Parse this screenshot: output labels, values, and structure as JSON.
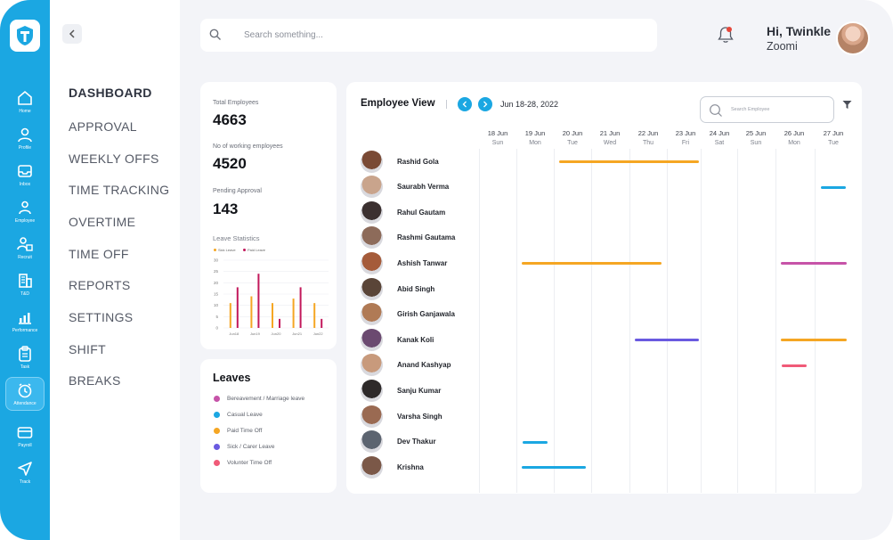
{
  "rail": {
    "items": [
      {
        "label": "Home",
        "icon": "home-icon"
      },
      {
        "label": "Profile",
        "icon": "user-icon"
      },
      {
        "label": "Inbox",
        "icon": "inbox-icon"
      },
      {
        "label": "Employee",
        "icon": "employees-icon"
      },
      {
        "label": "Recruit",
        "icon": "recruit-icon"
      },
      {
        "label": "T&D",
        "icon": "building-icon"
      },
      {
        "label": "Performance",
        "icon": "chart-icon"
      },
      {
        "label": "Task",
        "icon": "clipboard-icon"
      },
      {
        "label": "Attendance",
        "icon": "clock-icon"
      },
      {
        "label": "Payroll",
        "icon": "card-icon"
      },
      {
        "label": "Track",
        "icon": "send-icon"
      }
    ],
    "active": "Attendance"
  },
  "nav": {
    "items": [
      "DASHBOARD",
      "APPROVAL",
      "WEEKLY OFFS",
      "TIME TRACKING",
      "OVERTIME",
      "TIME OFF",
      "REPORTS",
      "SETTINGS",
      "SHIFT",
      "BREAKS"
    ],
    "active": "DASHBOARD"
  },
  "header": {
    "search_placeholder": "Search something...",
    "greeting": "Hi, Twinkle",
    "company": "Zoomi"
  },
  "stats": {
    "total_employees_label": "Total Employees",
    "total_employees": "4663",
    "working_label": "No of working employees",
    "working": "4520",
    "pending_label": "Pending Approval",
    "pending": "143"
  },
  "chart_data": {
    "type": "bar",
    "title": "Leave Statistics",
    "categories": [
      "Jun18",
      "Jun19",
      "Jun20",
      "Jun21",
      "Jun22"
    ],
    "ylim": [
      0,
      30
    ],
    "yticks": [
      "30",
      "25",
      "20",
      "15",
      "10",
      "5",
      "0"
    ],
    "series": [
      {
        "name": "Sick Leave",
        "color": "#f5a623",
        "values": [
          11,
          14,
          11,
          13,
          11
        ]
      },
      {
        "name": "Paid Leave",
        "color": "#c2185b",
        "values": [
          18,
          24,
          4,
          18,
          4
        ]
      }
    ]
  },
  "leaves": {
    "title": "Leaves",
    "items": [
      {
        "label": "Bereavement / Marriage leave",
        "color": "#c653a8"
      },
      {
        "label": "Casual Leave",
        "color": "#1ba7e2"
      },
      {
        "label": "Paid Time Off",
        "color": "#f5a623"
      },
      {
        "label": "Sick / Carer Leave",
        "color": "#6a5ae0"
      },
      {
        "label": "Volunter Time Off",
        "color": "#f05a78"
      }
    ]
  },
  "employee_view": {
    "title": "Employee View",
    "range": "Jun 18-28, 2022",
    "search_placeholder": "Search Employee",
    "days": [
      {
        "date": "18 Jun",
        "weekday": "Sun"
      },
      {
        "date": "19 Jun",
        "weekday": "Mon"
      },
      {
        "date": "20 Jun",
        "weekday": "Tue"
      },
      {
        "date": "21 Jun",
        "weekday": "Wed"
      },
      {
        "date": "22 Jun",
        "weekday": "Thu"
      },
      {
        "date": "23 Jun",
        "weekday": "Fri"
      },
      {
        "date": "24 Jun",
        "weekday": "Sat"
      },
      {
        "date": "25 Jun",
        "weekday": "Sun"
      },
      {
        "date": "26 Jun",
        "weekday": "Mon"
      },
      {
        "date": "27 Jun",
        "weekday": "Tue"
      }
    ],
    "employees": [
      {
        "name": "Rashid Gola",
        "leaves": [
          {
            "type": "Paid Time Off",
            "start": "20 Jun",
            "end": "23 Jun"
          }
        ]
      },
      {
        "name": "Saurabh Verma",
        "leaves": [
          {
            "type": "Casual Leave",
            "start": "27 Jun",
            "end": "27 Jun"
          }
        ]
      },
      {
        "name": "Rahul Gautam",
        "leaves": []
      },
      {
        "name": "Rashmi Gautama",
        "leaves": []
      },
      {
        "name": "Ashish Tanwar",
        "leaves": [
          {
            "type": "Paid Time Off",
            "start": "19 Jun",
            "end": "22 Jun"
          },
          {
            "type": "Bereavement / Marriage leave",
            "start": "26 Jun",
            "end": "27 Jun"
          }
        ]
      },
      {
        "name": "Abid Singh",
        "leaves": []
      },
      {
        "name": "Girish Ganjawala",
        "leaves": []
      },
      {
        "name": "Kanak Koli",
        "leaves": [
          {
            "type": "Sick / Carer Leave",
            "start": "22 Jun",
            "end": "23 Jun"
          },
          {
            "type": "Paid Time Off",
            "start": "26 Jun",
            "end": "27 Jun"
          }
        ]
      },
      {
        "name": "Anand Kashyap",
        "leaves": [
          {
            "type": "Volunter Time Off",
            "start": "26 Jun",
            "end": "26 Jun"
          }
        ]
      },
      {
        "name": "Sanju Kumar",
        "leaves": []
      },
      {
        "name": "Varsha Singh",
        "leaves": []
      },
      {
        "name": "Dev Thakur",
        "leaves": [
          {
            "type": "Casual Leave",
            "start": "19 Jun",
            "end": "19 Jun"
          }
        ]
      },
      {
        "name": "Krishna",
        "leaves": [
          {
            "type": "Casual Leave",
            "start": "19 Jun",
            "end": "20 Jun"
          }
        ]
      }
    ]
  }
}
